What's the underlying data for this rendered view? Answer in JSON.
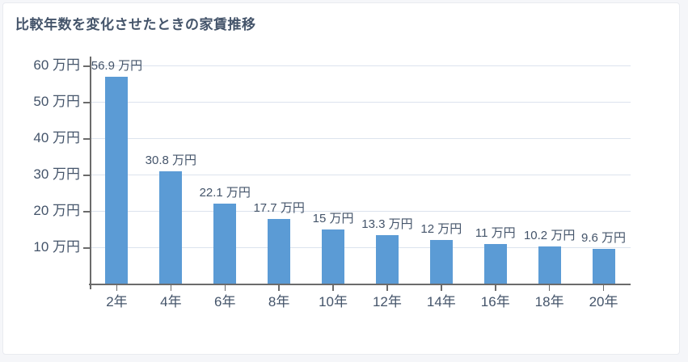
{
  "page": {
    "background_color": "#f5f6f9",
    "card_background": "#ffffff",
    "card_border_color": "#e9ebf0"
  },
  "chart_data": {
    "type": "bar",
    "title": "比較年数を変化させたときの家賃推移",
    "categories": [
      "2年",
      "4年",
      "6年",
      "8年",
      "10年",
      "12年",
      "14年",
      "16年",
      "18年",
      "20年"
    ],
    "values": [
      56.9,
      30.8,
      22.1,
      17.7,
      15,
      13.3,
      12,
      11,
      10.2,
      9.6
    ],
    "bar_value_labels": [
      "56.9 万円",
      "30.8 万円",
      "22.1 万円",
      "17.7 万円",
      "15 万円",
      "13.3 万円",
      "12 万円",
      "11 万円",
      "10.2 万円",
      "9.6 万円"
    ],
    "unit": "万円",
    "xlabel": "",
    "ylabel": "",
    "y_axis": {
      "tick_values": [
        10,
        20,
        30,
        40,
        50,
        60
      ],
      "tick_labels": [
        "10 万円",
        "20 万円",
        "30 万円",
        "40 万円",
        "50 万円",
        "60 万円"
      ],
      "min": 0,
      "max": 62
    },
    "grid": true,
    "legend_position": "none",
    "colors": {
      "bar": "#5b9bd5",
      "grid": "#dce3ee",
      "axis": "#6b6b6b",
      "text": "#44546a"
    }
  }
}
